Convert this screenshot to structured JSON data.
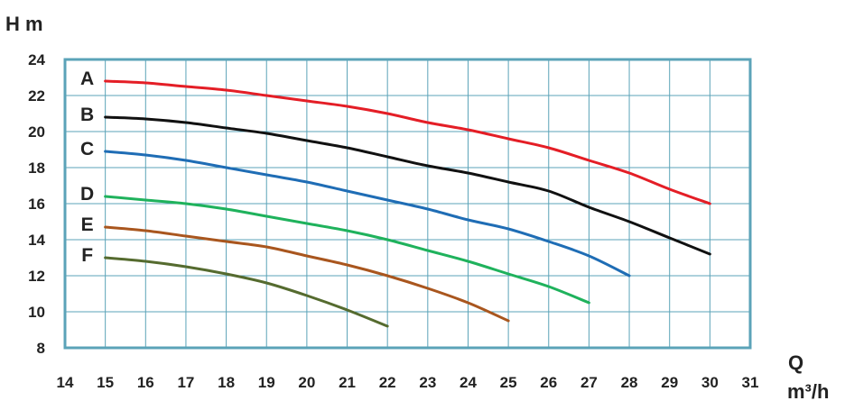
{
  "chart_data": {
    "type": "line",
    "ylabel": "H m",
    "xlabel_line1": "Q",
    "xlabel_line2": "m³/h",
    "xlim": [
      14,
      31
    ],
    "ylim": [
      8,
      24
    ],
    "x_ticks": [
      "14",
      "15",
      "16",
      "17",
      "18",
      "19",
      "20",
      "21",
      "22",
      "23",
      "24",
      "25",
      "26",
      "27",
      "28",
      "29",
      "30",
      "31"
    ],
    "y_ticks": [
      "8",
      "10",
      "12",
      "14",
      "16",
      "18",
      "20",
      "22",
      "24"
    ],
    "grid": true,
    "colors": {
      "frame": "#5ba3b8",
      "grid": "#5ba3b8",
      "background": "#ffffff"
    },
    "series": [
      {
        "name": "A",
        "color": "#e41e26",
        "points": [
          [
            15,
            22.8
          ],
          [
            16,
            22.7
          ],
          [
            17,
            22.5
          ],
          [
            18,
            22.3
          ],
          [
            19,
            22.0
          ],
          [
            20,
            21.7
          ],
          [
            21,
            21.4
          ],
          [
            22,
            21.0
          ],
          [
            23,
            20.5
          ],
          [
            24,
            20.1
          ],
          [
            25,
            19.6
          ],
          [
            26,
            19.1
          ],
          [
            27,
            18.4
          ],
          [
            28,
            17.7
          ],
          [
            29,
            16.8
          ],
          [
            30,
            16.0
          ]
        ]
      },
      {
        "name": "B",
        "color": "#111111",
        "points": [
          [
            15,
            20.8
          ],
          [
            16,
            20.7
          ],
          [
            17,
            20.5
          ],
          [
            18,
            20.2
          ],
          [
            19,
            19.9
          ],
          [
            20,
            19.5
          ],
          [
            21,
            19.1
          ],
          [
            22,
            18.6
          ],
          [
            23,
            18.1
          ],
          [
            24,
            17.7
          ],
          [
            25,
            17.2
          ],
          [
            26,
            16.7
          ],
          [
            27,
            15.8
          ],
          [
            28,
            15.0
          ],
          [
            29,
            14.1
          ],
          [
            30,
            13.2
          ]
        ]
      },
      {
        "name": "C",
        "color": "#1f6db5",
        "points": [
          [
            15,
            18.9
          ],
          [
            16,
            18.7
          ],
          [
            17,
            18.4
          ],
          [
            18,
            18.0
          ],
          [
            19,
            17.6
          ],
          [
            20,
            17.2
          ],
          [
            21,
            16.7
          ],
          [
            22,
            16.2
          ],
          [
            23,
            15.7
          ],
          [
            24,
            15.1
          ],
          [
            25,
            14.6
          ],
          [
            26,
            13.9
          ],
          [
            27,
            13.1
          ],
          [
            28,
            12.0
          ]
        ]
      },
      {
        "name": "D",
        "color": "#1fb25c",
        "points": [
          [
            15,
            16.4
          ],
          [
            16,
            16.2
          ],
          [
            17,
            16.0
          ],
          [
            18,
            15.7
          ],
          [
            19,
            15.3
          ],
          [
            20,
            14.9
          ],
          [
            21,
            14.5
          ],
          [
            22,
            14.0
          ],
          [
            23,
            13.4
          ],
          [
            24,
            12.8
          ],
          [
            25,
            12.1
          ],
          [
            26,
            11.4
          ],
          [
            27,
            10.5
          ]
        ]
      },
      {
        "name": "E",
        "color": "#a9561e",
        "points": [
          [
            15,
            14.7
          ],
          [
            16,
            14.5
          ],
          [
            17,
            14.2
          ],
          [
            18,
            13.9
          ],
          [
            19,
            13.6
          ],
          [
            20,
            13.1
          ],
          [
            21,
            12.6
          ],
          [
            22,
            12.0
          ],
          [
            23,
            11.3
          ],
          [
            24,
            10.5
          ],
          [
            25,
            9.5
          ]
        ]
      },
      {
        "name": "F",
        "color": "#556b2f",
        "points": [
          [
            15,
            13.0
          ],
          [
            16,
            12.8
          ],
          [
            17,
            12.5
          ],
          [
            18,
            12.1
          ],
          [
            19,
            11.6
          ],
          [
            20,
            10.9
          ],
          [
            21,
            10.1
          ],
          [
            22,
            9.2
          ]
        ]
      }
    ]
  }
}
